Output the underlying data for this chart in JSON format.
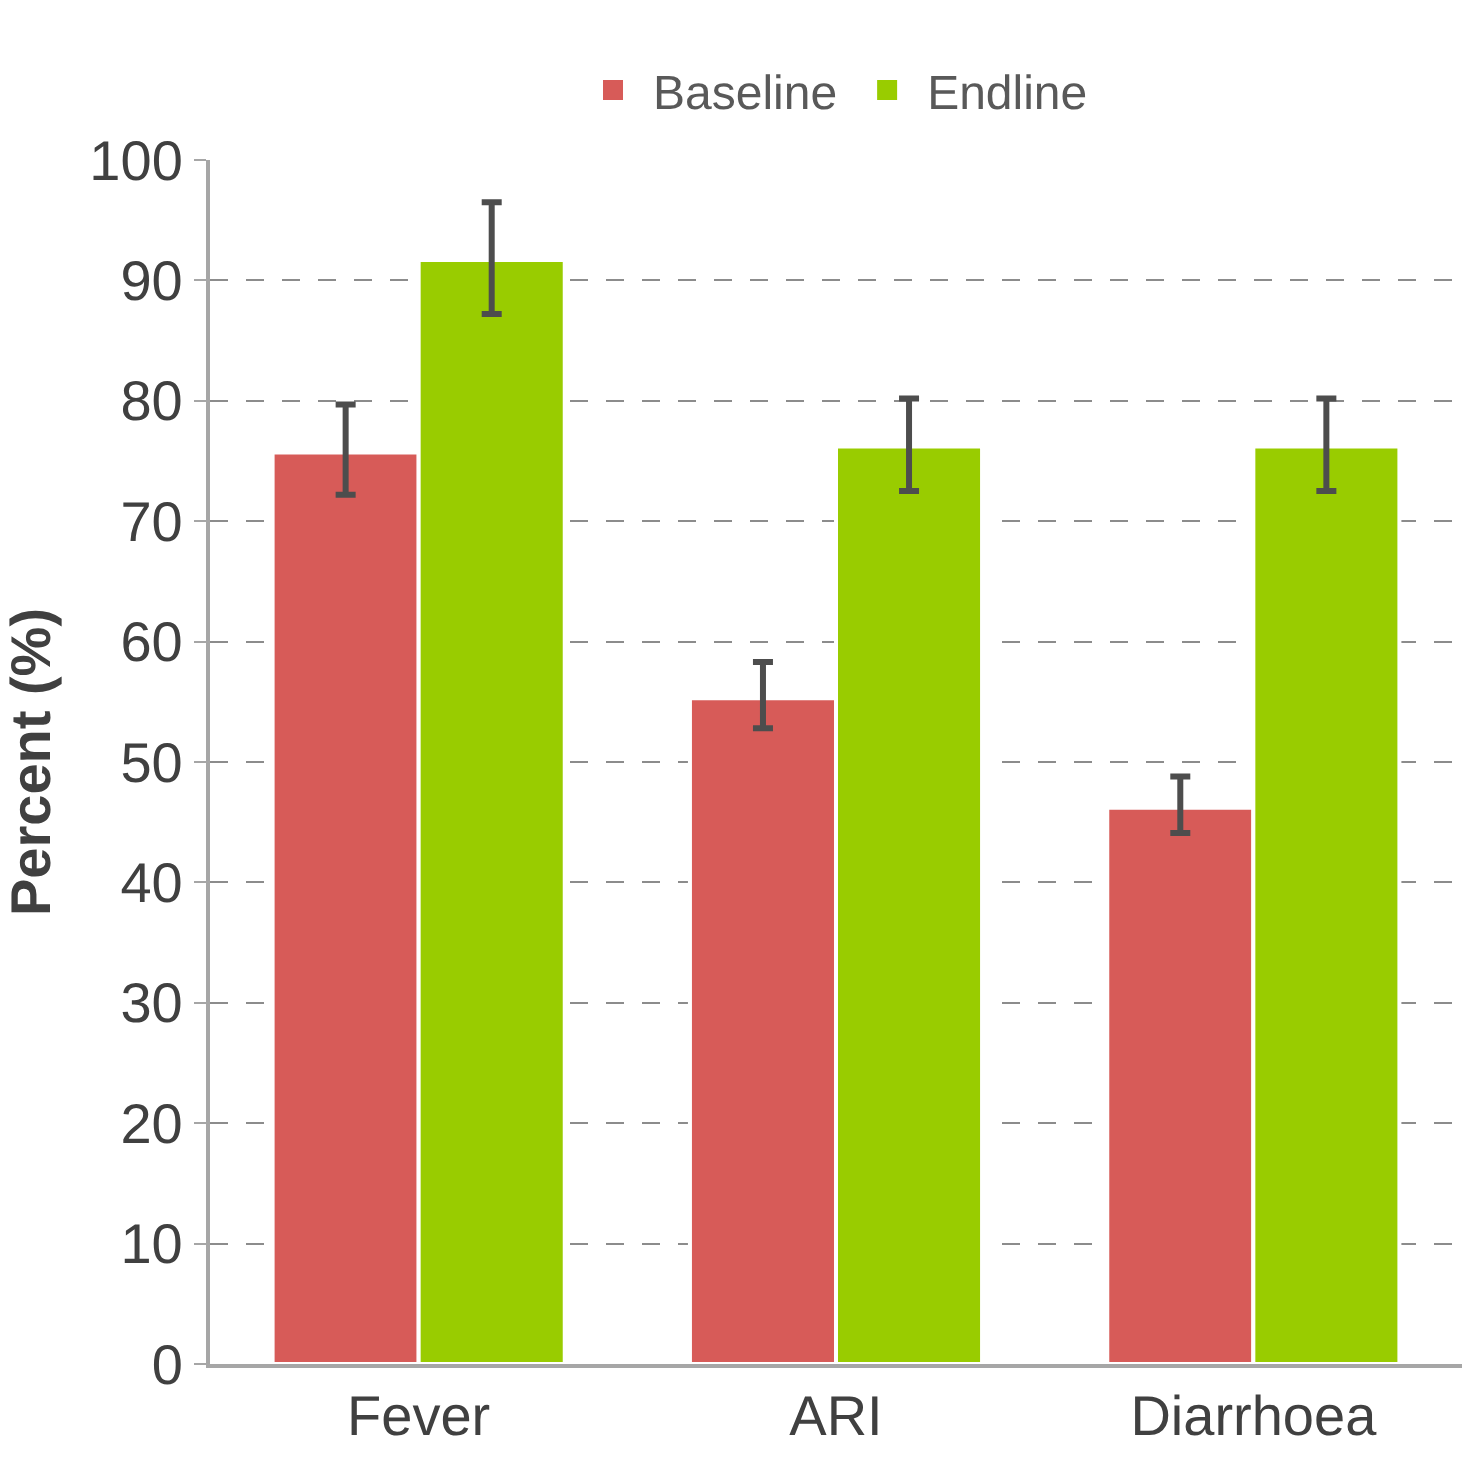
{
  "chart_data": {
    "type": "bar",
    "ylabel": "Percent (%)",
    "categories": [
      "Fever",
      "ARI",
      "Diarrhoea"
    ],
    "series": [
      {
        "name": "Baseline",
        "color": "#d75b58",
        "values": [
          75.7,
          55.3,
          46.2
        ],
        "errors": [
          [
            72.2,
            79.7
          ],
          [
            52.8,
            58.3
          ],
          [
            44.1,
            48.8
          ]
        ]
      },
      {
        "name": "Endline",
        "color": "#99cc00",
        "values": [
          91.7,
          76.2,
          76.2
        ],
        "errors": [
          [
            87.2,
            96.5
          ],
          [
            72.5,
            80.2
          ],
          [
            72.5,
            80.2
          ]
        ]
      }
    ],
    "ylim": [
      0,
      100
    ],
    "yticks": [
      0,
      10,
      20,
      30,
      40,
      50,
      60,
      70,
      80,
      90,
      100
    ],
    "grid": "y",
    "legend": "top"
  }
}
